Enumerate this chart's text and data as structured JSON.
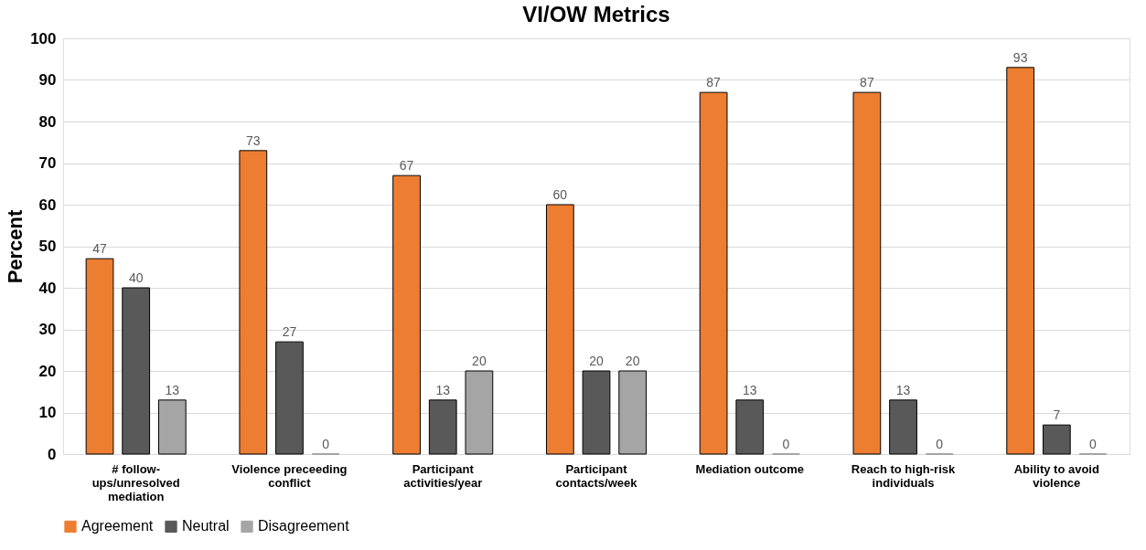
{
  "chart_data": {
    "type": "bar",
    "title": "VI/OW Metrics",
    "ylabel": "Percent",
    "categories": [
      "# follow-ups/unresolved mediation",
      "Violence preceeding conflict",
      "Participant activities/year",
      "Participant contacts/week",
      "Mediation outcome",
      "Reach to high-risk individuals",
      "Ability to avoid violence"
    ],
    "series": [
      {
        "name": "Agreement",
        "color": "#ed7d31",
        "values": [
          47,
          73,
          67,
          60,
          87,
          87,
          93
        ]
      },
      {
        "name": "Neutral",
        "color": "#595959",
        "values": [
          40,
          27,
          13,
          20,
          13,
          13,
          7
        ]
      },
      {
        "name": "Disagreement",
        "color": "#a5a5a5",
        "values": [
          13,
          0,
          20,
          20,
          0,
          0,
          0
        ]
      }
    ],
    "ylim": [
      0,
      100
    ],
    "yticks": [
      0,
      10,
      20,
      30,
      40,
      50,
      60,
      70,
      80,
      90,
      100
    ],
    "grid": "y",
    "legend": "bottom",
    "data_labels": true
  }
}
